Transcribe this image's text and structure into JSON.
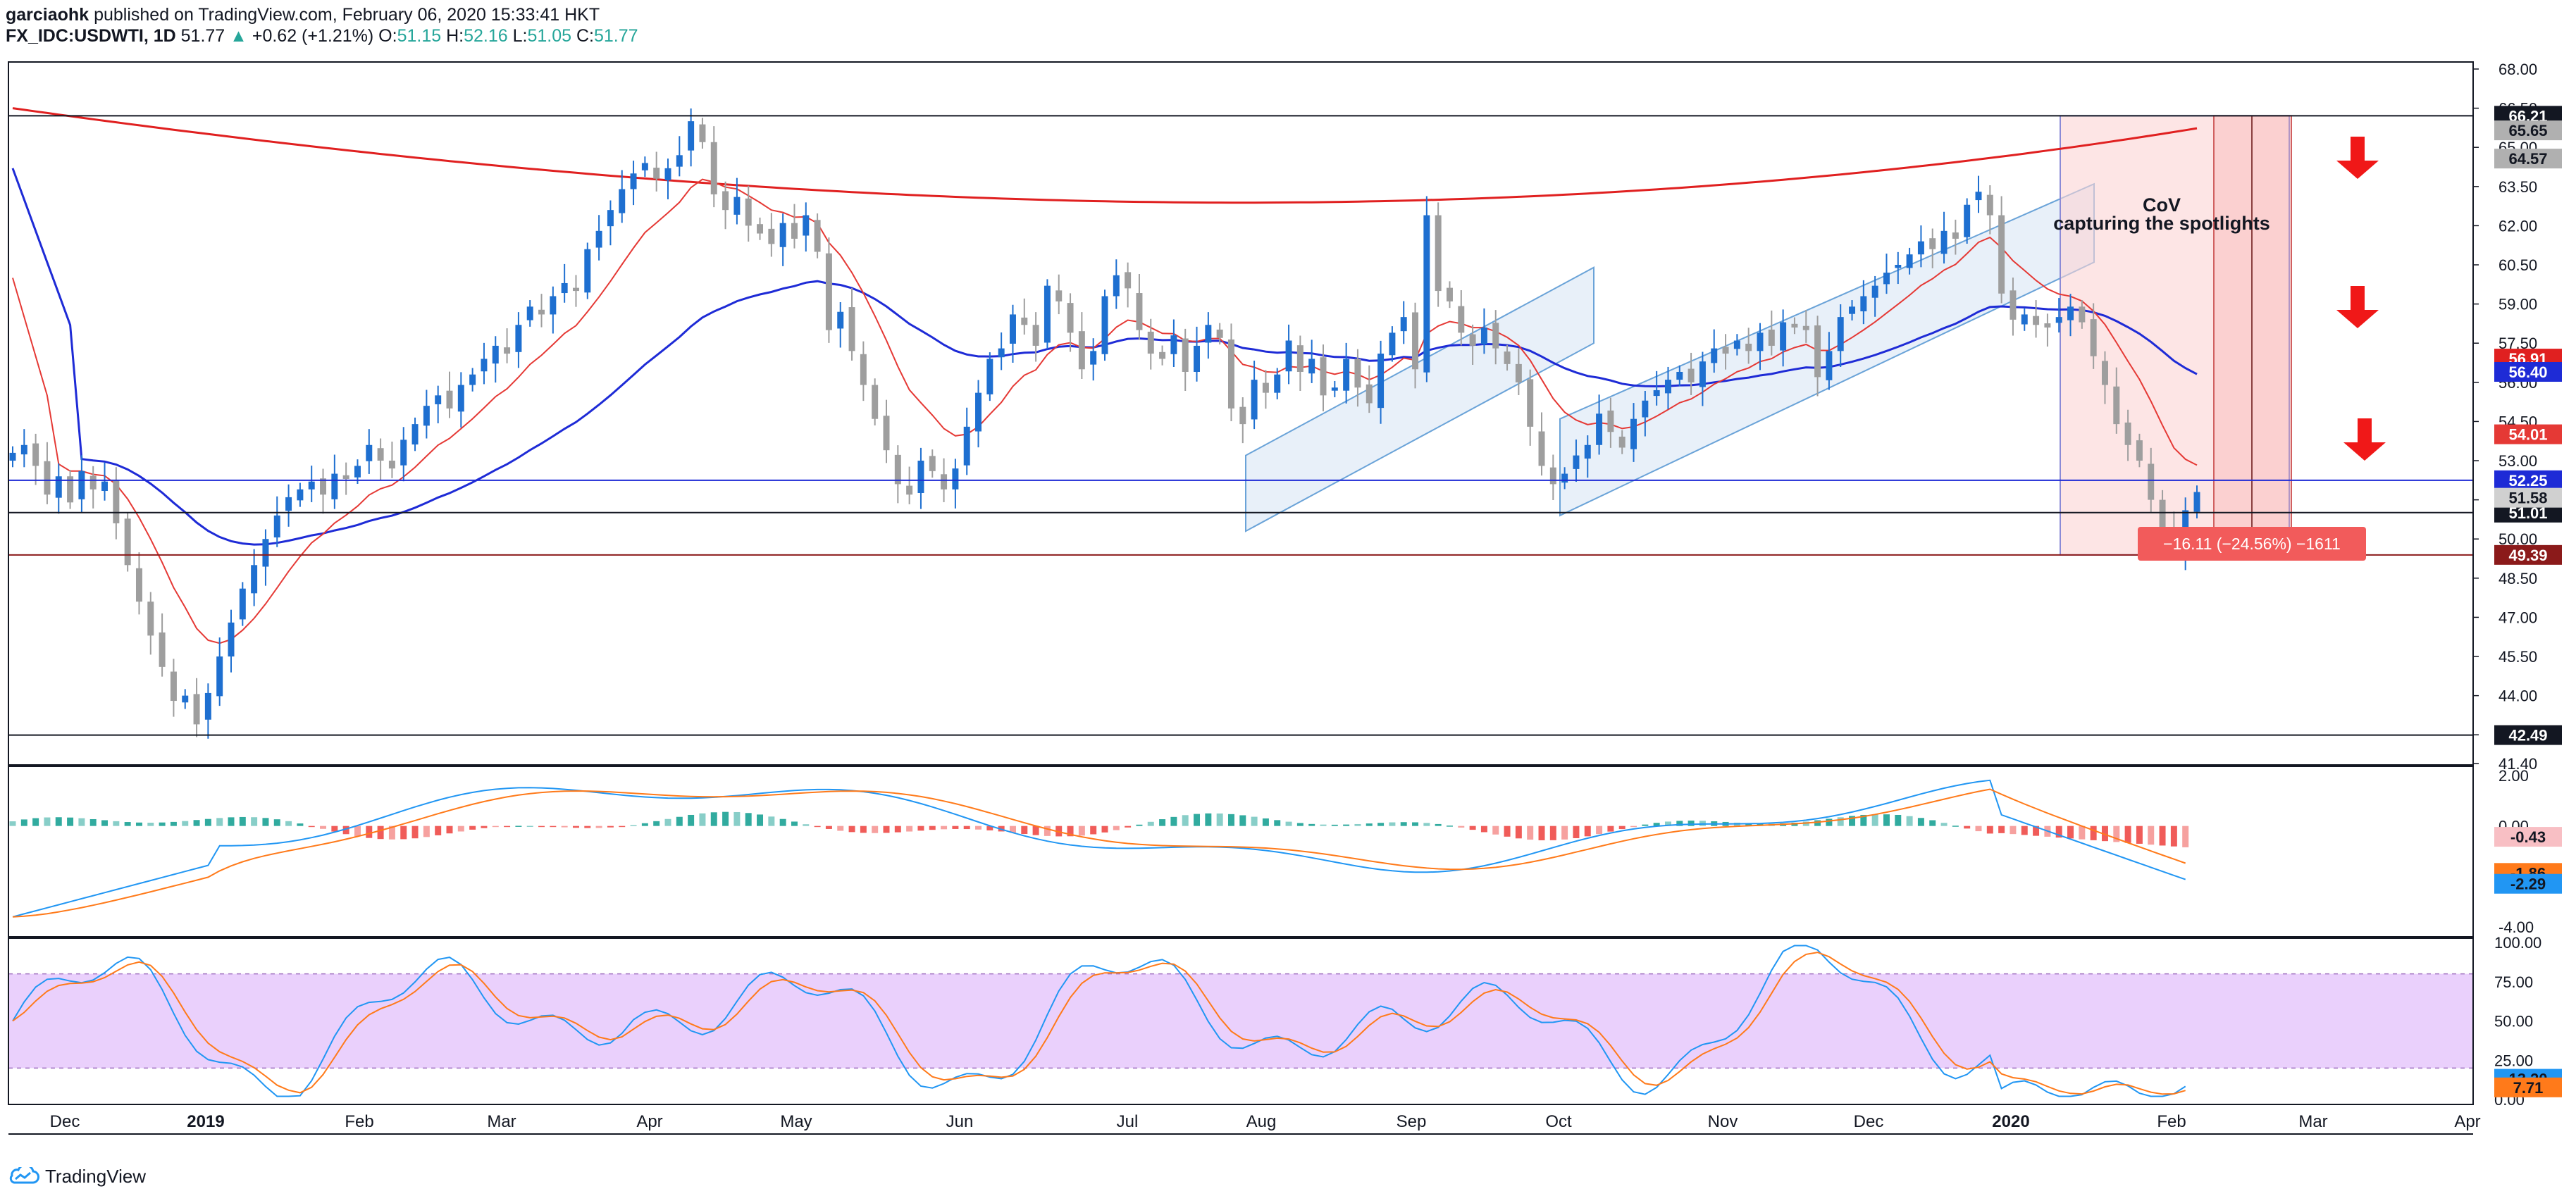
{
  "header": {
    "user": "garciaohk",
    "published": "published on TradingView.com, February 06, 2020 15:33:41 HKT",
    "symbol": "FX_IDC:USDWTI, 1D",
    "last": "51.77",
    "arrow": "▲",
    "change": "+0.62 (+1.21%)",
    "o_label": "O:",
    "o": "51.15",
    "h_label": "H:",
    "h": "52.16",
    "l_label": "L:",
    "l": "51.05",
    "c_label": "C:",
    "c": "51.77"
  },
  "footer": {
    "brand": "TradingView",
    "icon": "tradingview-logo-icon"
  },
  "colors": {
    "ema_fast": "#e53935",
    "ema_slow": "#1e2bd6",
    "ma_long": "#e02020",
    "candle_up": "#1e6fd0",
    "candle_down": "#9e9e9e",
    "channel": "#bcd4ee",
    "drop_box": "#fbd3d3",
    "stoch_band": "#e6c8fb",
    "macd_pos": "#26a69a",
    "macd_neg": "#ef5350"
  },
  "chart_data": [
    {
      "type": "line",
      "panel": "price",
      "ylim": [
        41.4,
        68.0
      ],
      "y_ticks": [
        "68.00",
        "66.50",
        "65.00",
        "63.50",
        "62.00",
        "60.50",
        "59.00",
        "57.50",
        "56.00",
        "54.50",
        "53.00",
        "51.50",
        "50.00",
        "48.50",
        "47.00",
        "45.50",
        "44.00",
        "42.50",
        "41.40"
      ],
      "x_ticks": [
        "Dec",
        "2019",
        "Feb",
        "Mar",
        "Apr",
        "May",
        "Jun",
        "Jul",
        "Aug",
        "Sep",
        "Oct",
        "Nov",
        "Dec",
        "2020",
        "Feb",
        "Mar",
        "Apr"
      ],
      "close_series": [
        [
          0,
          53.3
        ],
        [
          1,
          53.6
        ],
        [
          2,
          52.8
        ],
        [
          3,
          51.7
        ],
        [
          4,
          52.4
        ],
        [
          5,
          51.4
        ],
        [
          6,
          52.6
        ],
        [
          7,
          51.9
        ],
        [
          8,
          52.2
        ],
        [
          9,
          50.6
        ],
        [
          10,
          49.0
        ],
        [
          11,
          47.6
        ],
        [
          12,
          46.3
        ],
        [
          13,
          45.1
        ],
        [
          14,
          43.8
        ],
        [
          15,
          44.0
        ],
        [
          16,
          42.9
        ],
        [
          17,
          44.1
        ],
        [
          18,
          45.5
        ],
        [
          19,
          46.8
        ],
        [
          20,
          48.1
        ],
        [
          21,
          49.0
        ],
        [
          22,
          50.0
        ],
        [
          23,
          50.9
        ],
        [
          24,
          51.6
        ],
        [
          25,
          51.9
        ],
        [
          26,
          52.2
        ],
        [
          27,
          51.7
        ],
        [
          28,
          52.5
        ],
        [
          29,
          52.3
        ],
        [
          30,
          52.8
        ],
        [
          31,
          53.6
        ],
        [
          32,
          53.0
        ],
        [
          33,
          52.7
        ],
        [
          34,
          53.8
        ],
        [
          35,
          54.4
        ],
        [
          36,
          55.1
        ],
        [
          37,
          55.5
        ],
        [
          38,
          55.0
        ],
        [
          39,
          55.9
        ],
        [
          40,
          56.3
        ],
        [
          41,
          56.9
        ],
        [
          42,
          57.4
        ],
        [
          43,
          57.1
        ],
        [
          44,
          58.2
        ],
        [
          45,
          58.9
        ],
        [
          46,
          58.6
        ],
        [
          47,
          59.3
        ],
        [
          48,
          59.8
        ],
        [
          49,
          59.5
        ],
        [
          50,
          61.1
        ],
        [
          51,
          61.8
        ],
        [
          52,
          62.6
        ],
        [
          53,
          63.4
        ],
        [
          54,
          64.0
        ],
        [
          55,
          64.4
        ],
        [
          56,
          63.8
        ],
        [
          57,
          64.2
        ],
        [
          58,
          64.7
        ],
        [
          59,
          66.0
        ],
        [
          60,
          65.2
        ],
        [
          61,
          63.2
        ],
        [
          62,
          62.6
        ],
        [
          63,
          63.1
        ],
        [
          64,
          62.0
        ],
        [
          65,
          61.7
        ],
        [
          66,
          61.3
        ],
        [
          67,
          62.1
        ],
        [
          68,
          61.5
        ],
        [
          69,
          62.4
        ],
        [
          70,
          61.0
        ],
        [
          71,
          58.0
        ],
        [
          72,
          58.7
        ],
        [
          73,
          57.2
        ],
        [
          74,
          55.9
        ],
        [
          75,
          54.6
        ],
        [
          76,
          53.4
        ],
        [
          77,
          52.1
        ],
        [
          78,
          51.7
        ],
        [
          79,
          53.0
        ],
        [
          80,
          52.6
        ],
        [
          81,
          51.9
        ],
        [
          82,
          52.7
        ],
        [
          83,
          54.3
        ],
        [
          84,
          55.6
        ],
        [
          85,
          56.9
        ],
        [
          86,
          57.3
        ],
        [
          87,
          58.6
        ],
        [
          88,
          58.2
        ],
        [
          89,
          57.4
        ],
        [
          90,
          59.7
        ],
        [
          91,
          59.1
        ],
        [
          92,
          57.9
        ],
        [
          93,
          56.5
        ],
        [
          94,
          57.2
        ],
        [
          95,
          59.3
        ],
        [
          96,
          60.1
        ],
        [
          97,
          59.6
        ],
        [
          98,
          58.0
        ],
        [
          99,
          57.1
        ],
        [
          100,
          56.9
        ],
        [
          101,
          57.8
        ],
        [
          102,
          56.4
        ],
        [
          103,
          57.4
        ],
        [
          104,
          58.2
        ],
        [
          105,
          57.7
        ],
        [
          106,
          55.0
        ],
        [
          107,
          54.4
        ],
        [
          108,
          56.1
        ],
        [
          109,
          55.6
        ],
        [
          110,
          56.3
        ],
        [
          111,
          57.6
        ],
        [
          112,
          56.4
        ],
        [
          113,
          56.9
        ],
        [
          114,
          55.5
        ],
        [
          115,
          55.8
        ],
        [
          116,
          56.9
        ],
        [
          117,
          55.8
        ],
        [
          118,
          55.2
        ],
        [
          119,
          57.1
        ],
        [
          120,
          57.9
        ],
        [
          121,
          58.5
        ],
        [
          122,
          56.5
        ],
        [
          123,
          62.4
        ],
        [
          124,
          59.5
        ],
        [
          125,
          59.1
        ],
        [
          126,
          57.9
        ],
        [
          127,
          57.4
        ],
        [
          128,
          58.1
        ],
        [
          129,
          57.3
        ],
        [
          130,
          56.7
        ],
        [
          131,
          56.0
        ],
        [
          132,
          54.3
        ],
        [
          133,
          52.8
        ],
        [
          134,
          52.1
        ],
        [
          135,
          52.5
        ],
        [
          136,
          53.2
        ],
        [
          137,
          53.6
        ],
        [
          138,
          54.8
        ],
        [
          139,
          54.1
        ],
        [
          140,
          53.5
        ],
        [
          141,
          54.6
        ],
        [
          142,
          55.3
        ],
        [
          143,
          55.7
        ],
        [
          144,
          56.1
        ],
        [
          145,
          56.4
        ],
        [
          146,
          56.0
        ],
        [
          147,
          56.8
        ],
        [
          148,
          57.3
        ],
        [
          149,
          57.1
        ],
        [
          150,
          57.6
        ],
        [
          151,
          57.2
        ],
        [
          152,
          57.9
        ],
        [
          153,
          57.4
        ],
        [
          154,
          58.3
        ],
        [
          155,
          58.1
        ],
        [
          156,
          58.0
        ],
        [
          157,
          56.2
        ],
        [
          158,
          57.2
        ],
        [
          159,
          58.5
        ],
        [
          160,
          58.9
        ],
        [
          161,
          59.3
        ],
        [
          162,
          59.7
        ],
        [
          163,
          60.2
        ],
        [
          164,
          60.5
        ],
        [
          165,
          60.9
        ],
        [
          166,
          61.4
        ],
        [
          167,
          61.1
        ],
        [
          168,
          61.8
        ],
        [
          169,
          61.5
        ],
        [
          170,
          62.8
        ],
        [
          171,
          63.3
        ],
        [
          172,
          62.4
        ],
        [
          173,
          59.4
        ],
        [
          174,
          58.4
        ],
        [
          175,
          58.6
        ],
        [
          176,
          58.2
        ],
        [
          177,
          58.1
        ],
        [
          178,
          58.5
        ],
        [
          179,
          58.9
        ],
        [
          180,
          58.3
        ],
        [
          181,
          57.0
        ],
        [
          182,
          55.9
        ],
        [
          183,
          54.4
        ],
        [
          184,
          53.6
        ],
        [
          185,
          53.0
        ],
        [
          186,
          51.5
        ],
        [
          187,
          50.2
        ],
        [
          188,
          49.6
        ],
        [
          189,
          51.1
        ],
        [
          190,
          51.8
        ]
      ],
      "horizontal_levels": [
        {
          "value": 66.21,
          "label": "66.21",
          "color": "#131722"
        },
        {
          "value": 52.25,
          "label": "52.25",
          "color": "#1e2bd6"
        },
        {
          "value": 51.01,
          "label": "51.01",
          "color": "#131722"
        },
        {
          "value": 49.39,
          "label": "49.39",
          "color": "#8b1a1a"
        },
        {
          "value": 42.49,
          "label": "42.49",
          "color": "#131722"
        }
      ],
      "price_labels": [
        {
          "value": 65.65,
          "label": "65.65",
          "bg": "#b0b0b0",
          "fg": "#131722"
        },
        {
          "value": 64.57,
          "label": "64.57",
          "bg": "#b0b0b0",
          "fg": "#131722"
        },
        {
          "value": 56.91,
          "label": "56.91",
          "bg": "#e02020",
          "fg": "#ffffff"
        },
        {
          "value": 56.4,
          "label": "56.40",
          "bg": "#1e2bd6",
          "fg": "#ffffff"
        },
        {
          "value": 54.01,
          "label": "54.01",
          "bg": "#e53935",
          "fg": "#ffffff"
        },
        {
          "value": 51.58,
          "label": "51.58",
          "bg": "#d0d0d0",
          "fg": "#131722"
        }
      ],
      "annotations": {
        "cov_title": "CoV",
        "cov_sub": "capturing the spotlights",
        "drop": "−16.11 (−24.56%) −1611"
      }
    },
    {
      "type": "bar",
      "panel": "macd",
      "ylim": [
        -4.0,
        2.0
      ],
      "y_ticks": [
        "2.00",
        "0.00",
        "-2.00",
        "-4.00"
      ],
      "price_labels": [
        {
          "value": -0.43,
          "label": "-0.43",
          "bg": "#f8bfc4",
          "fg": "#131722"
        },
        {
          "value": -1.86,
          "label": "-1.86",
          "bg": "#ff7a1a",
          "fg": "#131722"
        },
        {
          "value": -2.29,
          "label": "-2.29",
          "bg": "#2196f3",
          "fg": "#131722"
        }
      ]
    },
    {
      "type": "line",
      "panel": "stoch_rsi",
      "ylim": [
        0,
        100
      ],
      "y_ticks": [
        "100.00",
        "75.00",
        "50.00",
        "25.00",
        "0.00"
      ],
      "band": [
        20,
        80
      ],
      "price_labels": [
        {
          "value": 13.2,
          "label": "13.20",
          "bg": "#2196f3",
          "fg": "#131722"
        },
        {
          "value": 7.71,
          "label": "7.71",
          "bg": "#ff7a1a",
          "fg": "#131722"
        }
      ]
    }
  ]
}
